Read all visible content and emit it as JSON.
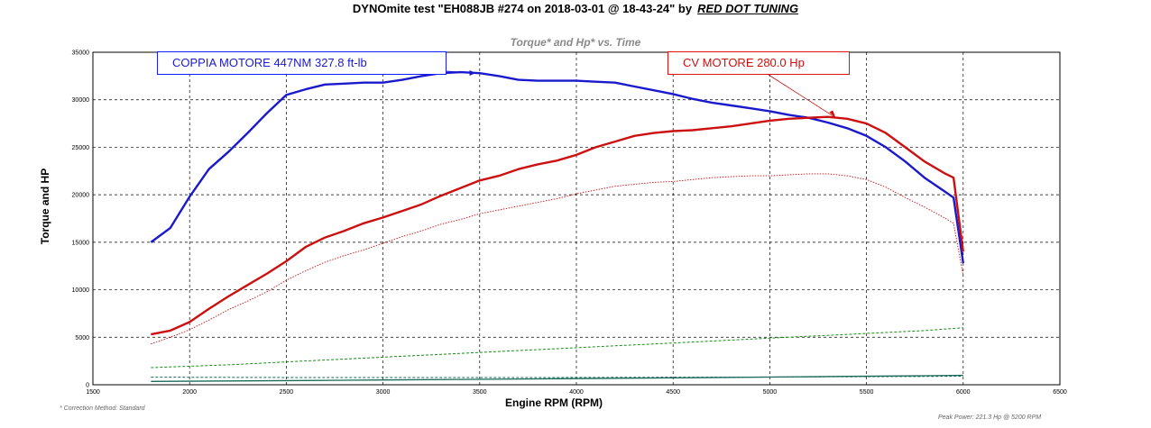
{
  "header": {
    "title": "DYNOmite test \"EH088JB #274 on 2018-03-01 @ 18-43-24\" by",
    "brand": "RED DOT TUNING"
  },
  "chart_data": {
    "type": "line",
    "title": "Torque* and Hp* vs. Time",
    "xlabel": "Engine RPM (RPM)",
    "ylabel": "Torque and HP",
    "xlim": [
      1500,
      6500
    ],
    "ylim": [
      0,
      35000
    ],
    "x_ticks": [
      1500,
      2000,
      2500,
      3000,
      3500,
      4000,
      4500,
      5000,
      5500,
      6000,
      6500
    ],
    "y_ticks": [
      0,
      5000,
      10000,
      15000,
      20000,
      25000,
      30000,
      35000
    ],
    "grid": true,
    "annotations": [
      {
        "text": "COPPIA MOTORE 447NM  327.8 ft-lb",
        "color": "#1a1acc",
        "target_rpm": 3480
      },
      {
        "text": "CV MOTORE 280.0 Hp",
        "color": "#cc1010",
        "target_rpm": 5340
      }
    ],
    "series": [
      {
        "color": "#1a1acc",
        "style": "solid-bold",
        "x": [
          1800,
          1900,
          2000,
          2100,
          2200,
          2300,
          2400,
          2500,
          2600,
          2700,
          2800,
          2900,
          3000,
          3100,
          3200,
          3300,
          3400,
          3500,
          3600,
          3700,
          3800,
          3900,
          4000,
          4100,
          4200,
          4300,
          4400,
          4500,
          4600,
          4700,
          4800,
          4900,
          5000,
          5100,
          5200,
          5300,
          5400,
          5500,
          5600,
          5700,
          5800,
          5900,
          5950,
          6000
        ],
        "y": [
          15000,
          16500,
          19800,
          22700,
          24500,
          26500,
          28600,
          30500,
          31100,
          31600,
          31700,
          31800,
          31800,
          32100,
          32500,
          32800,
          32900,
          32800,
          32500,
          32100,
          32000,
          32000,
          32000,
          31900,
          31800,
          31400,
          31000,
          30600,
          30100,
          29700,
          29400,
          29100,
          28800,
          28400,
          28100,
          27600,
          27000,
          26200,
          25000,
          23500,
          21800,
          20400,
          19700,
          12800
        ]
      },
      {
        "color": "#cc1010",
        "style": "solid-bold",
        "x": [
          1800,
          1900,
          2000,
          2100,
          2200,
          2300,
          2400,
          2500,
          2600,
          2700,
          2800,
          2900,
          3000,
          3100,
          3200,
          3300,
          3400,
          3500,
          3600,
          3700,
          3800,
          3900,
          4000,
          4100,
          4200,
          4300,
          4400,
          4500,
          4600,
          4700,
          4800,
          4900,
          5000,
          5100,
          5200,
          5300,
          5400,
          5500,
          5600,
          5700,
          5800,
          5900,
          5950,
          6000
        ],
        "y": [
          5300,
          5700,
          6600,
          8000,
          9300,
          10500,
          11700,
          13000,
          14500,
          15500,
          16200,
          17000,
          17600,
          18300,
          19000,
          19900,
          20700,
          21500,
          22000,
          22700,
          23200,
          23600,
          24200,
          25000,
          25600,
          26200,
          26500,
          26700,
          26800,
          27000,
          27200,
          27500,
          27800,
          28000,
          28100,
          28200,
          28000,
          27500,
          26500,
          25000,
          23500,
          22300,
          21800,
          14000
        ]
      },
      {
        "color": "#cc1010",
        "style": "dotted",
        "x": [
          1800,
          1900,
          2000,
          2100,
          2200,
          2300,
          2400,
          2500,
          2600,
          2700,
          2800,
          2900,
          3000,
          3100,
          3200,
          3300,
          3400,
          3500,
          3600,
          3700,
          3800,
          3900,
          4000,
          4100,
          4200,
          4300,
          4400,
          4500,
          4600,
          4700,
          4800,
          4900,
          5000,
          5100,
          5200,
          5300,
          5400,
          5500,
          5600,
          5700,
          5800,
          5900,
          5950,
          6000
        ],
        "y": [
          4300,
          5000,
          5800,
          6800,
          7900,
          8800,
          9800,
          11000,
          12000,
          12900,
          13600,
          14200,
          14900,
          15600,
          16200,
          16900,
          17400,
          18000,
          18400,
          18800,
          19200,
          19600,
          20100,
          20500,
          20900,
          21100,
          21300,
          21400,
          21600,
          21800,
          21900,
          22000,
          22000,
          22100,
          22200,
          22200,
          22000,
          21600,
          20800,
          19700,
          18700,
          17600,
          17000,
          11500
        ]
      },
      {
        "color": "#1a8a1a",
        "style": "dashed",
        "x": [
          1800,
          2200,
          2600,
          3000,
          3400,
          3800,
          4200,
          4600,
          5000,
          5400,
          5800,
          6000
        ],
        "y": [
          1800,
          2100,
          2500,
          2900,
          3300,
          3700,
          4100,
          4500,
          4900,
          5300,
          5700,
          6000
        ]
      },
      {
        "color": "#1a6a5a",
        "style": "dashed",
        "x": [
          1800,
          2200,
          2600,
          3000,
          3400,
          3800,
          4200,
          4600,
          5000,
          5400,
          5800,
          6000
        ],
        "y": [
          800,
          780,
          760,
          760,
          760,
          760,
          780,
          800,
          820,
          840,
          870,
          900
        ]
      },
      {
        "color": "#1a6a5a",
        "style": "solid",
        "x": [
          1800,
          2200,
          2600,
          3000,
          3400,
          3800,
          4200,
          4600,
          5000,
          5400,
          5800,
          6000
        ],
        "y": [
          350,
          400,
          450,
          500,
          560,
          620,
          680,
          740,
          810,
          880,
          950,
          1000
        ]
      }
    ]
  },
  "footer": {
    "correction_method": "* Correction Method: Standard",
    "peak_power": "Peak Power: 221.3 Hp @ 5200 RPM"
  }
}
